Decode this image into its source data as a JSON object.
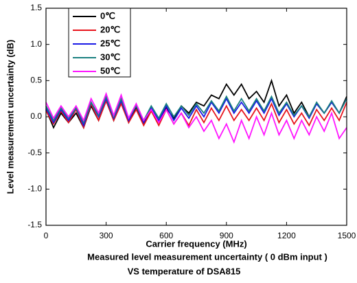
{
  "chart_data": {
    "type": "line",
    "x_label": "Carrier frequency (MHz)",
    "y_label": "Level measurement uncertainty (dB)",
    "title_lines": [
      "Measured level measurement uncertainty ( 0 dBm input )",
      "VS temperature of DSA815"
    ],
    "x": [
      0,
      37.5,
      75,
      112.5,
      150,
      187.5,
      225,
      262.5,
      300,
      337.5,
      375,
      412.5,
      450,
      487.5,
      525,
      562.5,
      600,
      637.5,
      675,
      712.5,
      750,
      787.5,
      825,
      862.5,
      900,
      937.5,
      975,
      1012.5,
      1050,
      1087.5,
      1125,
      1162.5,
      1200,
      1237.5,
      1275,
      1312.5,
      1350,
      1387.5,
      1425,
      1462.5,
      1500
    ],
    "xlim": [
      0,
      1500
    ],
    "xticks": [
      0,
      300,
      600,
      900,
      1200,
      1500
    ],
    "ylim": [
      -1.5,
      1.5
    ],
    "yticks": [
      {
        "value": -1.5,
        "label": "-1.5"
      },
      {
        "value": -1,
        "label": "-1.0"
      },
      {
        "value": -0.5,
        "label": "-0.5"
      },
      {
        "value": 0,
        "label": "0.0"
      },
      {
        "value": 0.5,
        "label": "0.5"
      },
      {
        "value": 1,
        "label": "1.0"
      },
      {
        "value": 1.5,
        "label": "1.5"
      }
    ],
    "series": [
      {
        "name": "0℃",
        "color": "#000000",
        "values": [
          0.1,
          -0.15,
          0.05,
          -0.08,
          0.05,
          -0.15,
          0.15,
          -0.05,
          0.22,
          -0.05,
          0.2,
          -0.08,
          0.12,
          -0.1,
          0.1,
          -0.05,
          0.12,
          -0.02,
          0.15,
          0.05,
          0.2,
          0.15,
          0.3,
          0.25,
          0.45,
          0.3,
          0.45,
          0.25,
          0.35,
          0.2,
          0.5,
          0.15,
          0.3,
          0.05,
          0.2,
          0.0,
          0.18,
          0.05,
          0.2,
          0.05,
          0.28
        ]
      },
      {
        "name": "20℃",
        "color": "#e8141c",
        "values": [
          0.08,
          -0.1,
          0.08,
          -0.08,
          0.1,
          -0.15,
          0.18,
          -0.05,
          0.22,
          -0.05,
          0.18,
          -0.08,
          0.1,
          -0.12,
          0.08,
          -0.12,
          0.1,
          -0.1,
          0.05,
          -0.12,
          0.1,
          -0.08,
          0.12,
          -0.05,
          0.15,
          -0.05,
          0.1,
          -0.05,
          0.12,
          -0.05,
          0.18,
          -0.08,
          0.1,
          -0.1,
          0.05,
          -0.12,
          0.1,
          -0.05,
          0.12,
          -0.05,
          0.2
        ]
      },
      {
        "name": "25℃",
        "color": "#1a1ae6",
        "values": [
          0.12,
          -0.08,
          0.1,
          -0.05,
          0.12,
          -0.12,
          0.2,
          0.0,
          0.25,
          -0.02,
          0.22,
          -0.05,
          0.15,
          -0.08,
          0.12,
          -0.05,
          0.15,
          -0.05,
          0.12,
          -0.02,
          0.15,
          0.0,
          0.2,
          0.05,
          0.25,
          0.05,
          0.2,
          0.05,
          0.22,
          0.05,
          0.25,
          0.02,
          0.18,
          0.0,
          0.15,
          -0.02,
          0.18,
          0.05,
          0.2,
          0.05,
          0.25
        ]
      },
      {
        "name": "30℃",
        "color": "#198080",
        "values": [
          0.15,
          -0.05,
          0.12,
          -0.02,
          0.12,
          -0.08,
          0.2,
          0.02,
          0.28,
          0.0,
          0.25,
          -0.02,
          0.15,
          -0.05,
          0.15,
          -0.02,
          0.18,
          0.0,
          0.15,
          0.02,
          0.18,
          0.05,
          0.22,
          0.08,
          0.28,
          0.08,
          0.25,
          0.08,
          0.25,
          0.08,
          0.28,
          0.05,
          0.2,
          0.02,
          0.15,
          0.0,
          0.2,
          0.05,
          0.22,
          0.05,
          0.25
        ]
      },
      {
        "name": "50℃",
        "color": "#ff14ff",
        "values": [
          0.2,
          -0.02,
          0.15,
          0.0,
          0.15,
          -0.05,
          0.25,
          0.05,
          0.32,
          0.02,
          0.3,
          -0.02,
          0.18,
          -0.05,
          0.1,
          -0.08,
          0.1,
          -0.1,
          0.05,
          -0.15,
          0.0,
          -0.2,
          -0.05,
          -0.3,
          -0.1,
          -0.35,
          -0.05,
          -0.3,
          0.0,
          -0.25,
          0.05,
          -0.25,
          -0.05,
          -0.3,
          -0.05,
          -0.25,
          0.0,
          -0.2,
          0.05,
          -0.3,
          -0.15
        ]
      }
    ]
  }
}
